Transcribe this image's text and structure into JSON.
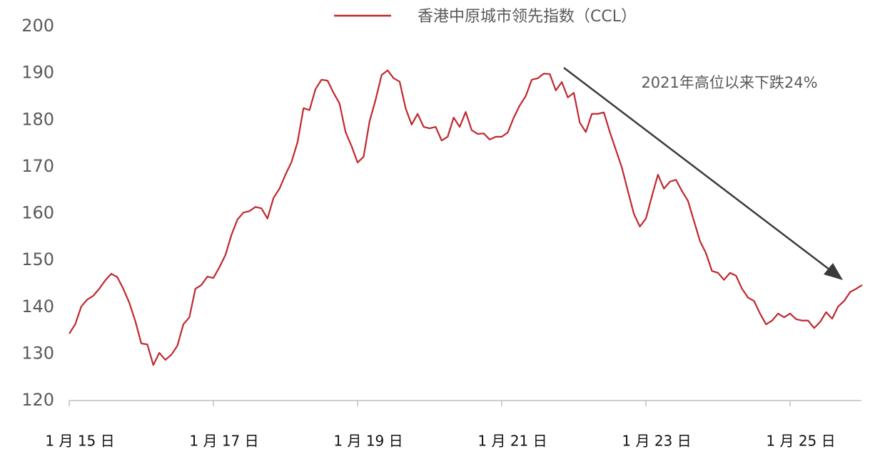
{
  "chart_data": {
    "type": "line",
    "legend_position": "top",
    "annotation": "2021年高位以来下跌24%",
    "categories": [
      "1 月 15 日",
      null,
      null,
      null,
      null,
      null,
      null,
      null,
      null,
      null,
      null,
      null,
      null,
      null,
      null,
      null,
      null,
      null,
      null,
      null,
      null,
      null,
      null,
      null,
      "1 月 17 日",
      null,
      null,
      null,
      null,
      null,
      null,
      null,
      null,
      null,
      null,
      null,
      null,
      null,
      null,
      null,
      null,
      null,
      null,
      null,
      null,
      null,
      null,
      null,
      "1 月 19 日",
      null,
      null,
      null,
      null,
      null,
      null,
      null,
      null,
      null,
      null,
      null,
      null,
      null,
      null,
      null,
      null,
      null,
      null,
      null,
      null,
      null,
      null,
      null,
      "1 月 21 日",
      null,
      null,
      null,
      null,
      null,
      null,
      null,
      null,
      null,
      null,
      null,
      null,
      null,
      null,
      null,
      null,
      null,
      null,
      null,
      null,
      null,
      null,
      null,
      "1 月 23 日",
      null,
      null,
      null,
      null,
      null,
      null,
      null,
      null,
      null,
      null,
      null,
      null,
      null,
      null,
      null,
      null,
      null,
      null,
      null,
      null,
      null,
      null,
      null,
      "1 月 25 日",
      null,
      null,
      null,
      null,
      null,
      null,
      null,
      null,
      null,
      null,
      null,
      null
    ],
    "series": [
      {
        "name": "香港中原城市领先指数（CCL）",
        "color": "#c0282d",
        "values": [
          134.3,
          136.3,
          140.1,
          141.6,
          142.4,
          143.9,
          145.7,
          147.1,
          146.4,
          143.9,
          140.9,
          137,
          132.2,
          132,
          127.6,
          130.2,
          128.7,
          129.8,
          131.7,
          136.3,
          137.8,
          143.9,
          144.7,
          146.5,
          146.2,
          148.5,
          151.1,
          155.4,
          158.7,
          160.2,
          160.5,
          161.4,
          161.1,
          158.9,
          163.3,
          165.3,
          168.3,
          171,
          175.2,
          182.5,
          182.1,
          186.6,
          188.6,
          188.4,
          185.8,
          183.5,
          177.4,
          174.4,
          170.9,
          172.1,
          179.7,
          184.3,
          189.6,
          190.6,
          188.9,
          188.2,
          182.5,
          179,
          181.3,
          178.5,
          178.2,
          178.5,
          175.6,
          176.4,
          180.5,
          178.5,
          181.7,
          177.8,
          177,
          177.1,
          175.8,
          176.4,
          176.4,
          177.3,
          180.5,
          183.1,
          185.1,
          188.6,
          188.9,
          189.9,
          189.8,
          186.3,
          188.1,
          184.8,
          185.8,
          179.4,
          177.4,
          181.3,
          181.3,
          181.6,
          177.4,
          173.6,
          169.8,
          164.8,
          159.9,
          157.2,
          158.9,
          163.7,
          168.3,
          165.3,
          166.8,
          167.2,
          164.8,
          162.7,
          158.4,
          154.1,
          151.5,
          147.7,
          147.3,
          145.8,
          147.3,
          146.7,
          143.9,
          142,
          141.3,
          138.6,
          136.3,
          137.1,
          138.6,
          137.8,
          138.6,
          137.4,
          137.1,
          137.1,
          135.5,
          136.8,
          138.9,
          137.5,
          140.1,
          141.3,
          143.2,
          143.9,
          144.7
        ]
      }
    ],
    "ylim": [
      120,
      200
    ],
    "yticks": [
      120,
      130,
      140,
      150,
      160,
      170,
      180,
      190,
      200
    ],
    "grid": false
  }
}
